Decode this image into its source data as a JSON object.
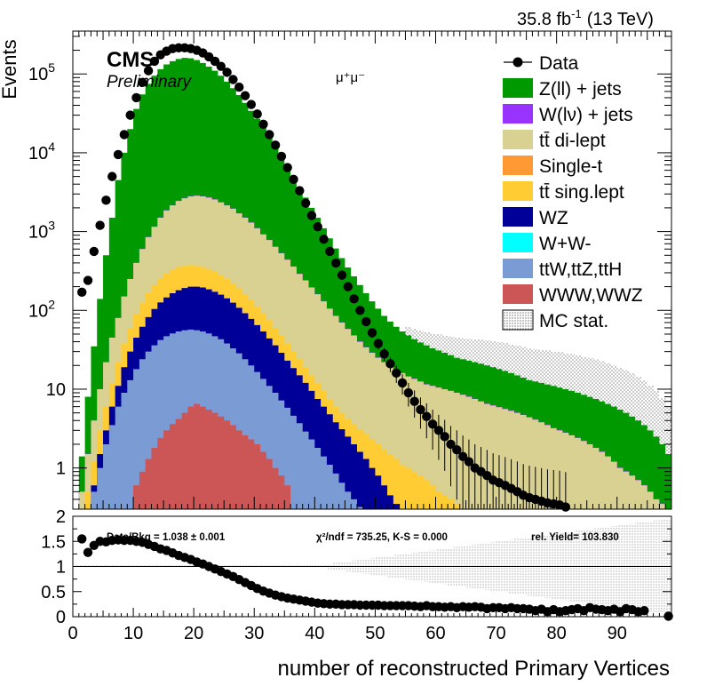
{
  "header": {
    "lumi": "35.8 fb",
    "lumi_exp": "-1",
    "energy": "(13 TeV)"
  },
  "labels": {
    "cms": "CMS",
    "preliminary": "Preliminary",
    "channel": "μ⁺μ⁻"
  },
  "stats": {
    "ratio": "Data/Bkg = 1.038 ± 0.001",
    "chi2": "χ²/ndf = 735.25,   K-S = 0.000",
    "yield": "rel. Yield= 103.830"
  },
  "colors": {
    "zll": "#009900",
    "wlv": "#9933ff",
    "ttdi": "#d9d192",
    "singlet": "#ff9933",
    "ttsemi": "#ffcc33",
    "wz": "#000099",
    "ww": "#00ffff",
    "ttv": "#7b9bd4",
    "vvv": "#cc5555"
  },
  "chart_data": {
    "type": "stacked-histogram",
    "xlabel": "number of reconstructed Primary Vertices",
    "ylabel": "Events",
    "xlim": [
      0,
      99
    ],
    "ylim": [
      0.3,
      350000
    ],
    "yscale": "log",
    "bin_width": 1,
    "x_ticks": [
      "0",
      "10",
      "20",
      "30",
      "40",
      "50",
      "60",
      "70",
      "80",
      "90"
    ],
    "y_ticks": [
      {
        "label": "1",
        "exp": "",
        "value": 1
      },
      {
        "label": "10",
        "exp": "",
        "value": 10
      },
      {
        "label": "10",
        "exp": "2",
        "value": 100
      },
      {
        "label": "10",
        "exp": "3",
        "value": 1000
      },
      {
        "label": "10",
        "exp": "4",
        "value": 10000
      },
      {
        "label": "10",
        "exp": "5",
        "value": 100000
      }
    ],
    "legend_position": "top-right",
    "legend": [
      {
        "key": "data",
        "label": "Data",
        "style": "marker"
      },
      {
        "key": "zll",
        "label": "Z(ll) + jets",
        "style": "fill"
      },
      {
        "key": "wlv",
        "label": "W(lν) + jets",
        "style": "fill"
      },
      {
        "key": "ttdi",
        "label": "tt̄ di-lept",
        "style": "fill"
      },
      {
        "key": "singlet",
        "label": "Single-t",
        "style": "fill"
      },
      {
        "key": "ttsemi",
        "label": "tt̄ sing.lept",
        "style": "fill"
      },
      {
        "key": "wz",
        "label": "WZ",
        "style": "fill"
      },
      {
        "key": "ww",
        "label": "W+W-",
        "style": "fill"
      },
      {
        "key": "ttv",
        "label": "ttW,ttZ,ttH",
        "style": "fill"
      },
      {
        "key": "vvv",
        "label": "WWW,WWZ",
        "style": "fill"
      },
      {
        "key": "mcstat",
        "label": "MC stat.",
        "style": "hatch"
      }
    ],
    "total_mc": [
      0,
      1.4,
      8,
      35,
      140,
      500,
      1500,
      4500,
      10000,
      20000,
      36000,
      55000,
      75000,
      95000,
      115000,
      132000,
      145000,
      155000,
      160000,
      158000,
      150000,
      138000,
      124000,
      110000,
      95000,
      80000,
      66000,
      54000,
      43000,
      34000,
      27000,
      21000,
      16000,
      12000,
      9000,
      6700,
      5000,
      3700,
      2700,
      2000,
      1500,
      1100,
      820,
      610,
      460,
      350,
      270,
      210,
      165,
      130,
      105,
      85,
      72,
      62,
      54,
      48,
      43,
      39,
      36,
      33,
      31,
      29,
      27,
      25,
      24,
      23,
      22,
      21,
      20,
      19,
      18,
      17,
      16,
      15,
      14,
      13,
      12.5,
      12,
      11.5,
      11,
      10.5,
      10,
      9.5,
      9,
      8.5,
      8,
      7.5,
      7,
      6.5,
      6,
      5.5,
      5,
      4.5,
      4,
      3.5,
      3,
      2.5,
      2,
      1.5
    ],
    "ttdi_top": [
      0,
      0.5,
      1.5,
      4,
      10,
      22,
      45,
      80,
      150,
      250,
      400,
      600,
      850,
      1150,
      1500,
      1850,
      2150,
      2450,
      2650,
      2800,
      2850,
      2800,
      2700,
      2550,
      2350,
      2150,
      1950,
      1700,
      1500,
      1300,
      1100,
      920,
      780,
      640,
      530,
      440,
      360,
      290,
      240,
      195,
      160,
      130,
      105,
      85,
      70,
      58,
      48,
      40,
      34,
      29,
      25,
      22,
      19.5,
      17.5,
      16,
      14.5,
      13.5,
      12.5,
      11.5,
      11,
      10.5,
      10,
      9.5,
      9,
      8.5,
      8,
      7.5,
      7,
      6.5,
      6.2,
      5.9,
      5.6,
      5.3,
      5,
      4.7,
      4.4,
      4.1,
      3.8,
      3.5,
      3.2,
      3,
      2.8,
      2.6,
      2.4,
      2.2,
      2,
      1.8,
      1.6,
      1.4,
      1.2,
      1.0,
      0.9,
      0.8,
      0.7,
      0.6,
      0.5,
      0.4,
      0.35,
      0.3
    ],
    "ttsemi_top": [
      0,
      0,
      0.5,
      1.2,
      3,
      6,
      12,
      22,
      38,
      60,
      90,
      125,
      165,
      210,
      255,
      295,
      330,
      355,
      370,
      375,
      370,
      355,
      335,
      310,
      280,
      250,
      220,
      190,
      160,
      135,
      112,
      92,
      75,
      60,
      48,
      38,
      30,
      24,
      19,
      15,
      12,
      9.5,
      7.5,
      6,
      5,
      4.2,
      3.6,
      3.1,
      2.7,
      2.3,
      2.0,
      1.7,
      1.5,
      1.3,
      1.1,
      1.0,
      0.9,
      0.8,
      0.7,
      0.6,
      0.5,
      0.45,
      0.4,
      0.35,
      0.3,
      0,
      0,
      0,
      0,
      0,
      0,
      0,
      0,
      0,
      0,
      0,
      0,
      0,
      0,
      0,
      0,
      0,
      0,
      0,
      0,
      0,
      0,
      0,
      0,
      0,
      0,
      0,
      0,
      0,
      0,
      0,
      0,
      0,
      0
    ],
    "wz_top": [
      0,
      0,
      0,
      0.6,
      1.5,
      3,
      6,
      11,
      19,
      30,
      45,
      62,
      82,
      104,
      126,
      146,
      165,
      180,
      192,
      200,
      200,
      195,
      185,
      172,
      158,
      142,
      125,
      108,
      92,
      78,
      65,
      54,
      44,
      36,
      29,
      23,
      18.5,
      15,
      12,
      9.5,
      7.5,
      6,
      4.8,
      3.8,
      3.1,
      2.5,
      2.0,
      1.6,
      1.3,
      1.0,
      0.8,
      0.6,
      0.45,
      0.35,
      0,
      0,
      0,
      0,
      0,
      0,
      0,
      0,
      0,
      0,
      0,
      0,
      0,
      0,
      0,
      0,
      0,
      0,
      0,
      0,
      0,
      0,
      0,
      0,
      0,
      0,
      0,
      0,
      0,
      0,
      0,
      0,
      0,
      0,
      0,
      0,
      0,
      0,
      0,
      0,
      0,
      0,
      0,
      0,
      0,
      0
    ],
    "ttv_top": [
      0,
      0,
      0,
      0.5,
      1.0,
      2.0,
      3.5,
      6,
      9,
      13,
      18,
      24,
      30,
      36,
      42,
      47,
      51,
      54,
      56,
      57,
      56,
      54,
      51,
      47,
      43,
      38,
      33,
      28.5,
      24,
      20,
      16.5,
      13.5,
      11,
      9,
      7.2,
      5.8,
      4.6,
      3.7,
      2.9,
      2.3,
      1.8,
      1.4,
      1.1,
      0.85,
      0.65,
      0.5,
      0.4,
      0.32,
      0,
      0,
      0,
      0,
      0,
      0,
      0,
      0,
      0,
      0,
      0,
      0,
      0,
      0,
      0,
      0,
      0,
      0,
      0,
      0,
      0,
      0,
      0,
      0,
      0,
      0,
      0,
      0,
      0,
      0,
      0,
      0,
      0,
      0,
      0,
      0,
      0,
      0,
      0,
      0,
      0,
      0,
      0,
      0,
      0,
      0,
      0,
      0,
      0,
      0,
      0,
      0
    ],
    "vvv_top": [
      0,
      0,
      0,
      0,
      0,
      0,
      0,
      0,
      0,
      0,
      0.6,
      0.9,
      1.3,
      1.8,
      2.4,
      3.0,
      3.6,
      4.2,
      5.0,
      6.0,
      6.5,
      6.0,
      5.5,
      5.0,
      4.5,
      4.0,
      3.5,
      3.0,
      2.6,
      2.3,
      2.0,
      1.6,
      1.3,
      1.0,
      0.8,
      0.6,
      0,
      0,
      0,
      0,
      0,
      0,
      0,
      0,
      0,
      0,
      0,
      0,
      0,
      0,
      0,
      0,
      0,
      0,
      0,
      0,
      0,
      0,
      0,
      0,
      0,
      0,
      0,
      0,
      0,
      0,
      0,
      0,
      0,
      0,
      0,
      0,
      0,
      0,
      0,
      0,
      0,
      0,
      0,
      0,
      0,
      0,
      0,
      0,
      0,
      0,
      0,
      0,
      0,
      0,
      0,
      0,
      0,
      0,
      0,
      0,
      0,
      0,
      0
    ],
    "data_points": [
      [
        1.5,
        170
      ],
      [
        2.5,
        240
      ],
      [
        3.5,
        560
      ],
      [
        4.5,
        1200
      ],
      [
        5.5,
        2500
      ],
      [
        6.5,
        5000
      ],
      [
        7.5,
        9500
      ],
      [
        8.5,
        17000
      ],
      [
        9.5,
        30000
      ],
      [
        10.5,
        50000
      ],
      [
        11.5,
        78000
      ],
      [
        12.5,
        110000
      ],
      [
        13.5,
        145000
      ],
      [
        14.5,
        175000
      ],
      [
        15.5,
        195000
      ],
      [
        16.5,
        210000
      ],
      [
        17.5,
        215000
      ],
      [
        18.5,
        215000
      ],
      [
        19.5,
        210000
      ],
      [
        20.5,
        200000
      ],
      [
        21.5,
        185000
      ],
      [
        22.5,
        165000
      ],
      [
        23.5,
        145000
      ],
      [
        24.5,
        125000
      ],
      [
        25.5,
        105000
      ],
      [
        26.5,
        85000
      ],
      [
        27.5,
        68000
      ],
      [
        28.5,
        53000
      ],
      [
        29.5,
        41000
      ],
      [
        30.5,
        31000
      ],
      [
        31.5,
        23000
      ],
      [
        32.5,
        17000
      ],
      [
        33.5,
        12500
      ],
      [
        34.5,
        9000
      ],
      [
        35.5,
        6500
      ],
      [
        36.5,
        4600
      ],
      [
        37.5,
        3300
      ],
      [
        38.5,
        2300
      ],
      [
        39.5,
        1600
      ],
      [
        40.5,
        1150
      ],
      [
        41.5,
        800
      ],
      [
        42.5,
        560
      ],
      [
        43.5,
        400
      ],
      [
        44.5,
        280
      ],
      [
        45.5,
        200
      ],
      [
        46.5,
        140
      ],
      [
        47.5,
        100
      ],
      [
        48.5,
        72
      ],
      [
        49.5,
        52
      ],
      [
        50.5,
        38
      ],
      [
        51.5,
        28
      ],
      [
        52.5,
        21
      ],
      [
        53.5,
        16
      ],
      [
        54.5,
        12
      ],
      [
        55.5,
        9
      ],
      [
        56.5,
        7
      ],
      [
        57.5,
        5.5
      ],
      [
        58.5,
        4.5
      ],
      [
        59.5,
        3.6
      ],
      [
        60.5,
        3.0
      ],
      [
        61.5,
        2.5
      ],
      [
        62.5,
        2.0
      ],
      [
        63.5,
        1.7
      ],
      [
        64.5,
        1.4
      ],
      [
        65.5,
        1.2
      ],
      [
        66.5,
        1.0
      ],
      [
        67.5,
        0.9
      ],
      [
        68.5,
        0.8
      ],
      [
        69.5,
        0.7
      ],
      [
        70.5,
        0.65
      ],
      [
        71.5,
        0.6
      ],
      [
        72.5,
        0.55
      ],
      [
        73.5,
        0.5
      ],
      [
        74.5,
        0.45
      ],
      [
        75.5,
        0.42
      ],
      [
        76.5,
        0.4
      ],
      [
        77.5,
        0.38
      ],
      [
        78.5,
        0.36
      ],
      [
        79.5,
        0.35
      ],
      [
        80.5,
        0.34
      ],
      [
        81.5,
        0.32
      ],
      [
        82.5,
        0.31
      ],
      [
        83.5,
        0.3
      ],
      [
        84.5,
        0.3
      ],
      [
        85.5,
        0.3
      ],
      [
        86.5,
        0.3
      ],
      [
        87.5,
        0.3
      ],
      [
        88.5,
        0.3
      ],
      [
        89.5,
        0.3
      ],
      [
        90.5,
        0.3
      ],
      [
        91.5,
        0.3
      ],
      [
        92.5,
        0.3
      ],
      [
        93.5,
        0.3
      ],
      [
        94.5,
        0.3
      ],
      [
        95.5,
        0.3
      ],
      [
        96.5,
        0.3
      ],
      [
        97.5,
        0.3
      ],
      [
        98.5,
        0.3
      ]
    ],
    "ratio_panel": {
      "ylim": [
        0,
        2
      ],
      "y_ticks": [
        "0",
        "0.5",
        "1",
        "1.5",
        "2"
      ],
      "points": [
        [
          1.5,
          1.55
        ],
        [
          2.5,
          1.28
        ],
        [
          3.5,
          1.42
        ],
        [
          4.5,
          1.5
        ],
        [
          5.5,
          1.49
        ],
        [
          6.5,
          1.52
        ],
        [
          7.5,
          1.53
        ],
        [
          8.5,
          1.52
        ],
        [
          9.5,
          1.52
        ],
        [
          10.5,
          1.5
        ],
        [
          11.5,
          1.48
        ],
        [
          12.5,
          1.44
        ],
        [
          13.5,
          1.4
        ],
        [
          14.5,
          1.35
        ],
        [
          15.5,
          1.32
        ],
        [
          16.5,
          1.27
        ],
        [
          17.5,
          1.22
        ],
        [
          18.5,
          1.18
        ],
        [
          19.5,
          1.14
        ],
        [
          20.5,
          1.09
        ],
        [
          21.5,
          1.05
        ],
        [
          22.5,
          1.0
        ],
        [
          23.5,
          0.95
        ],
        [
          24.5,
          0.9
        ],
        [
          25.5,
          0.85
        ],
        [
          26.5,
          0.8
        ],
        [
          27.5,
          0.74
        ],
        [
          28.5,
          0.68
        ],
        [
          29.5,
          0.62
        ],
        [
          30.5,
          0.56
        ],
        [
          31.5,
          0.51
        ],
        [
          32.5,
          0.47
        ],
        [
          33.5,
          0.43
        ],
        [
          34.5,
          0.4
        ],
        [
          35.5,
          0.37
        ],
        [
          36.5,
          0.35
        ],
        [
          37.5,
          0.33
        ],
        [
          38.5,
          0.31
        ],
        [
          39.5,
          0.29
        ],
        [
          40.5,
          0.27
        ],
        [
          41.5,
          0.26
        ],
        [
          42.5,
          0.25
        ],
        [
          43.5,
          0.25
        ],
        [
          44.5,
          0.24
        ],
        [
          45.5,
          0.24
        ],
        [
          46.5,
          0.24
        ],
        [
          47.5,
          0.23
        ],
        [
          48.5,
          0.23
        ],
        [
          49.5,
          0.23
        ],
        [
          50.5,
          0.23
        ],
        [
          51.5,
          0.22
        ],
        [
          52.5,
          0.22
        ],
        [
          53.5,
          0.22
        ],
        [
          54.5,
          0.22
        ],
        [
          55.5,
          0.22
        ],
        [
          56.5,
          0.21
        ],
        [
          57.5,
          0.2
        ],
        [
          58.5,
          0.22
        ],
        [
          59.5,
          0.2
        ],
        [
          60.5,
          0.2
        ],
        [
          61.5,
          0.19
        ],
        [
          62.5,
          0.2
        ],
        [
          63.5,
          0.18
        ],
        [
          64.5,
          0.2
        ],
        [
          65.5,
          0.19
        ],
        [
          66.5,
          0.2
        ],
        [
          67.5,
          0.19
        ],
        [
          68.5,
          0.16
        ],
        [
          69.5,
          0.18
        ],
        [
          70.5,
          0.18
        ],
        [
          71.5,
          0.16
        ],
        [
          72.5,
          0.18
        ],
        [
          73.5,
          0.16
        ],
        [
          74.5,
          0.16
        ],
        [
          75.5,
          0.15
        ],
        [
          76.5,
          0.12
        ],
        [
          77.5,
          0.15
        ],
        [
          78.5,
          0.1
        ],
        [
          79.5,
          0.14
        ],
        [
          80.5,
          0.1
        ],
        [
          81.5,
          0.12
        ],
        [
          82.5,
          0.14
        ],
        [
          83.5,
          0.16
        ],
        [
          84.5,
          0.12
        ],
        [
          85.5,
          0.18
        ],
        [
          86.5,
          0.15
        ],
        [
          87.5,
          0.14
        ],
        [
          88.5,
          0.12
        ],
        [
          89.5,
          0.15
        ],
        [
          90.5,
          0.1
        ],
        [
          91.5,
          0.16
        ],
        [
          92.5,
          0.14
        ],
        [
          93.5,
          0.1
        ],
        [
          94.5,
          0.12
        ],
        [
          98.5,
          0.01
        ]
      ]
    }
  }
}
